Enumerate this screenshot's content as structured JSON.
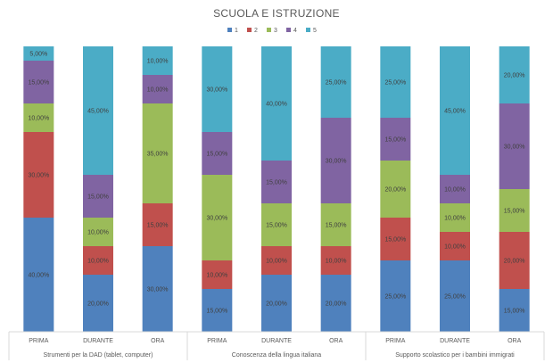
{
  "chart_data": {
    "type": "bar",
    "stacked": "percent",
    "title": "SCUOLA E ISTRUZIONE",
    "legend_position": "top",
    "grid": false,
    "ylim": [
      0,
      100
    ],
    "groups": [
      {
        "label": "Strumenti per la DAD (tablet, computer)",
        "categories": [
          "PRIMA",
          "DURANTE",
          "ORA"
        ]
      },
      {
        "label": "Conoscenza della lingua italiana",
        "categories": [
          "PRIMA",
          "DURANTE",
          "ORA"
        ]
      },
      {
        "label": "Supporto scolastico per i bambini immigrati",
        "categories": [
          "PRIMA",
          "DURANTE",
          "ORA"
        ]
      }
    ],
    "series": [
      {
        "name": "1",
        "color": "#4f81bd",
        "values": [
          40,
          20,
          30,
          15,
          20,
          20,
          25,
          25,
          15
        ]
      },
      {
        "name": "2",
        "color": "#c0504d",
        "values": [
          30,
          10,
          15,
          10,
          10,
          10,
          15,
          10,
          20
        ]
      },
      {
        "name": "3",
        "color": "#9bbb59",
        "values": [
          10,
          10,
          35,
          30,
          15,
          15,
          20,
          10,
          15
        ]
      },
      {
        "name": "4",
        "color": "#8064a2",
        "values": [
          15,
          15,
          10,
          15,
          15,
          30,
          15,
          10,
          30
        ]
      },
      {
        "name": "5",
        "color": "#4bacc6",
        "values": [
          5,
          45,
          10,
          30,
          40,
          25,
          25,
          45,
          20
        ]
      }
    ],
    "value_suffix": "%",
    "decimal_separator": ","
  }
}
